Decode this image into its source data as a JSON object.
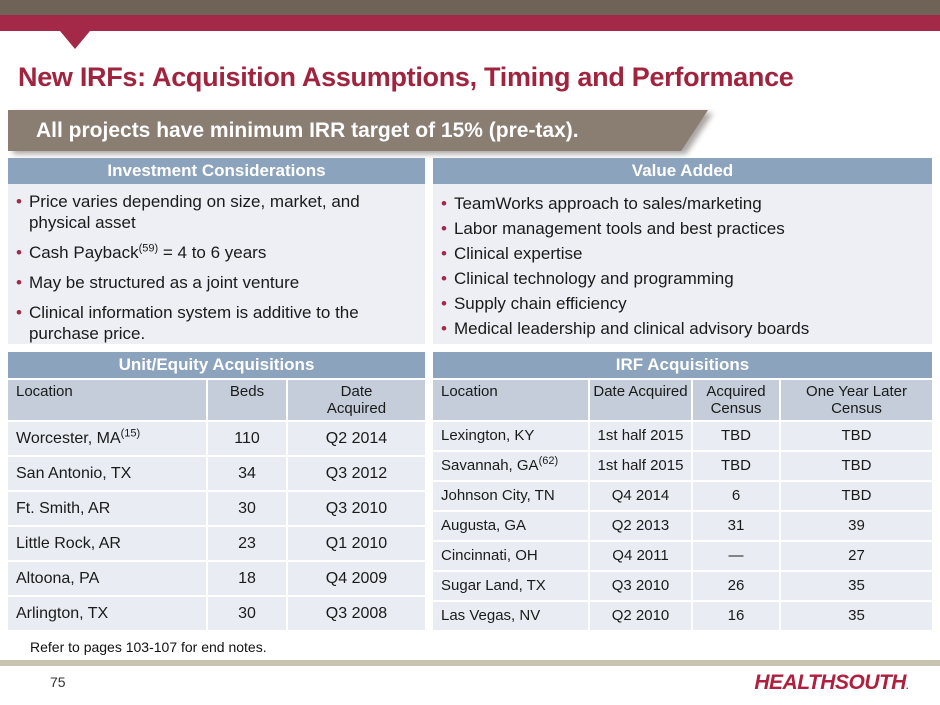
{
  "colors": {
    "top_bar_brown": "#6f6358",
    "accent_crimson": "#a42848",
    "title_maroon": "#a1243f",
    "banner_bg": "#8a7d72",
    "section_header_bg": "#8ba3bd",
    "table_header_bg": "#c4cdd9",
    "row_bg": "#e9edf3",
    "panel_bg": "#edeff4",
    "footer_line": "#c9c3b1",
    "logo_red": "#b01f3d"
  },
  "header": {
    "title": "New IRFs: Acquisition Assumptions, Timing and Performance"
  },
  "banner": {
    "text": "All projects have minimum IRR target of 15% (pre-tax)."
  },
  "investment": {
    "header": "Investment Considerations",
    "bullets": [
      {
        "pre": "Price varies depending on size, market, and physical asset",
        "sup": "",
        "post": ""
      },
      {
        "pre": "Cash Payback",
        "sup": "(59)",
        "post": " = 4 to 6 years"
      },
      {
        "pre": "May be structured as a joint venture",
        "sup": "",
        "post": ""
      },
      {
        "pre": "Clinical information system is additive to the purchase price.",
        "sup": "",
        "post": ""
      }
    ]
  },
  "value_added": {
    "header": "Value Added",
    "bullets": [
      {
        "pre": "TeamWorks approach to sales/marketing",
        "sup": "",
        "post": ""
      },
      {
        "pre": "Labor management tools and best practices",
        "sup": "",
        "post": ""
      },
      {
        "pre": "Clinical expertise",
        "sup": "",
        "post": ""
      },
      {
        "pre": "Clinical technology and programming",
        "sup": "",
        "post": ""
      },
      {
        "pre": "Supply chain efficiency",
        "sup": "",
        "post": ""
      },
      {
        "pre": "Medical leadership and clinical advisory boards",
        "sup": "",
        "post": ""
      }
    ]
  },
  "unit_table": {
    "title": "Unit/Equity Acquisitions",
    "headers": {
      "location": "Location",
      "beds": "Beds",
      "date": "Date Acquired"
    },
    "rows": [
      {
        "location": {
          "pre": "Worcester, MA",
          "sup": "(15)"
        },
        "beds": "110",
        "date": "Q2 2014"
      },
      {
        "location": {
          "pre": "San Antonio, TX",
          "sup": ""
        },
        "beds": "34",
        "date": "Q3 2012"
      },
      {
        "location": {
          "pre": "Ft. Smith, AR",
          "sup": ""
        },
        "beds": "30",
        "date": "Q3 2010"
      },
      {
        "location": {
          "pre": "Little Rock, AR",
          "sup": ""
        },
        "beds": "23",
        "date": "Q1 2010"
      },
      {
        "location": {
          "pre": "Altoona, PA",
          "sup": ""
        },
        "beds": "18",
        "date": "Q4 2009"
      },
      {
        "location": {
          "pre": "Arlington, TX",
          "sup": ""
        },
        "beds": "30",
        "date": "Q3 2008"
      }
    ]
  },
  "irf_table": {
    "title": "IRF Acquisitions",
    "headers": {
      "location": "Location",
      "date": "Date Acquired",
      "acquired": "Acquired Census",
      "one_year": "One Year Later Census"
    },
    "rows": [
      {
        "location": {
          "pre": "Lexington, KY",
          "sup": ""
        },
        "date": "1st half 2015",
        "acquired": "TBD",
        "one_year": "TBD"
      },
      {
        "location": {
          "pre": "Savannah, GA",
          "sup": "(62)"
        },
        "date": "1st half 2015",
        "acquired": "TBD",
        "one_year": "TBD"
      },
      {
        "location": {
          "pre": "Johnson City, TN",
          "sup": ""
        },
        "date": "Q4 2014",
        "acquired": "6",
        "one_year": "TBD"
      },
      {
        "location": {
          "pre": "Augusta, GA",
          "sup": ""
        },
        "date": "Q2 2013",
        "acquired": "31",
        "one_year": "39"
      },
      {
        "location": {
          "pre": "Cincinnati, OH",
          "sup": ""
        },
        "date": "Q4 2011",
        "acquired": "—",
        "one_year": "27"
      },
      {
        "location": {
          "pre": "Sugar Land, TX",
          "sup": ""
        },
        "date": "Q3 2010",
        "acquired": "26",
        "one_year": "35"
      },
      {
        "location": {
          "pre": "Las Vegas, NV",
          "sup": ""
        },
        "date": "Q2 2010",
        "acquired": "16",
        "one_year": "35"
      }
    ]
  },
  "footer": {
    "note": "Refer to pages 103-107 for end notes.",
    "page_number": "75",
    "logo": "HEALTHSOUTH",
    "logo_mark": "."
  }
}
